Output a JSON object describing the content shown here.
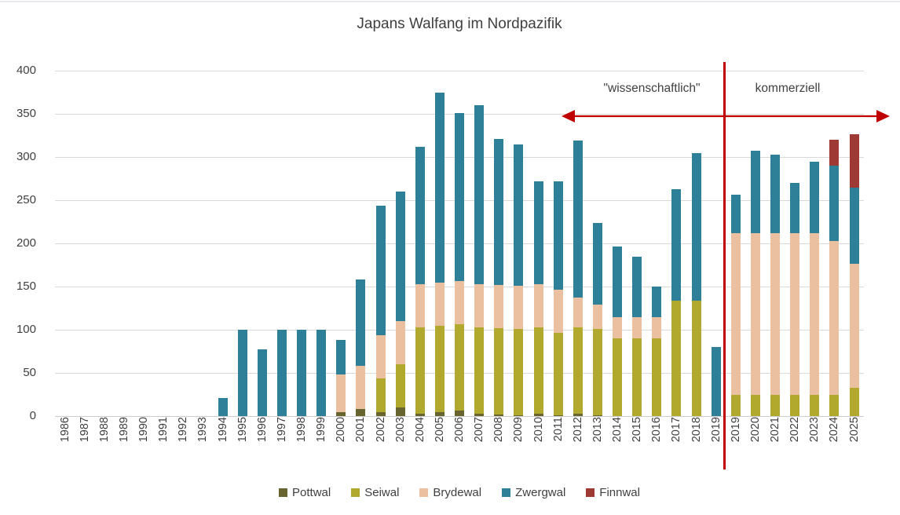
{
  "title": "Japans Walfang im Nordpazifik",
  "annotations": {
    "left_label": "\"wissenschaftlich\"",
    "right_label": "kommerziell"
  },
  "colors": {
    "pottwal": "#686430",
    "seiwal": "#b1a92d",
    "brydewal": "#ebc0a0",
    "zwergwal": "#2e8099",
    "finnwal": "#9e3a33",
    "divider": "#c00000",
    "grid": "#d9d9d9",
    "text": "#404040"
  },
  "chart_data": {
    "type": "bar",
    "stacked": true,
    "title": "Japans Walfang im Nordpazifik",
    "xlabel": "",
    "ylabel": "",
    "ylim": [
      0,
      400
    ],
    "yticks": [
      0,
      50,
      100,
      150,
      200,
      250,
      300,
      350,
      400
    ],
    "grid": true,
    "legend_position": "bottom",
    "divider_after_category_index": 33,
    "divider_note": "red vertical line separates scientific whaling years (1986-2019) from commercial whaling years (2019-2025)",
    "categories": [
      "1986",
      "1987",
      "1988",
      "1989",
      "1990",
      "1991",
      "1992",
      "1993",
      "1994",
      "1995",
      "1996",
      "1997",
      "1998",
      "1999",
      "2000",
      "2001",
      "2002",
      "2003",
      "2004",
      "2005",
      "2006",
      "2007",
      "2008",
      "2009",
      "2010",
      "2011",
      "2012",
      "2013",
      "2014",
      "2015",
      "2016",
      "2017",
      "2018",
      "2019",
      "2019",
      "2020",
      "2021",
      "2022",
      "2023",
      "2024",
      "2025"
    ],
    "series": [
      {
        "name": "Pottwal",
        "color": "#686430",
        "values": [
          0,
          0,
          0,
          0,
          0,
          0,
          0,
          0,
          0,
          0,
          0,
          0,
          0,
          0,
          5,
          8,
          5,
          10,
          3,
          5,
          6,
          3,
          2,
          1,
          3,
          1,
          3,
          1,
          0,
          0,
          0,
          0,
          0,
          0,
          0,
          0,
          0,
          0,
          0,
          0,
          0
        ]
      },
      {
        "name": "Seiwal",
        "color": "#b1a92d",
        "values": [
          0,
          0,
          0,
          0,
          0,
          0,
          0,
          0,
          0,
          0,
          0,
          0,
          0,
          0,
          0,
          0,
          39,
          50,
          100,
          100,
          100,
          100,
          100,
          100,
          100,
          95,
          100,
          100,
          90,
          90,
          90,
          134,
          134,
          0,
          25,
          25,
          25,
          25,
          25,
          25,
          33
        ]
      },
      {
        "name": "Brydewal",
        "color": "#ebc0a0",
        "values": [
          0,
          0,
          0,
          0,
          0,
          0,
          0,
          0,
          0,
          0,
          0,
          0,
          0,
          0,
          43,
          50,
          50,
          50,
          50,
          50,
          50,
          50,
          50,
          50,
          50,
          50,
          34,
          28,
          25,
          25,
          25,
          0,
          0,
          0,
          187,
          187,
          187,
          187,
          187,
          178,
          143
        ]
      },
      {
        "name": "Zwergwal",
        "color": "#2e8099",
        "values": [
          0,
          0,
          0,
          0,
          0,
          0,
          0,
          0,
          21,
          100,
          77,
          100,
          100,
          100,
          40,
          100,
          150,
          150,
          159,
          220,
          195,
          207,
          169,
          164,
          119,
          126,
          182,
          95,
          81,
          70,
          35,
          129,
          171,
          80,
          44,
          95,
          91,
          58,
          83,
          87,
          89
        ]
      },
      {
        "name": "Finnwal",
        "color": "#9e3a33",
        "values": [
          0,
          0,
          0,
          0,
          0,
          0,
          0,
          0,
          0,
          0,
          0,
          0,
          0,
          0,
          0,
          0,
          0,
          0,
          0,
          0,
          0,
          0,
          0,
          0,
          0,
          0,
          0,
          0,
          0,
          0,
          0,
          0,
          0,
          0,
          0,
          0,
          0,
          0,
          0,
          30,
          61
        ]
      }
    ]
  }
}
